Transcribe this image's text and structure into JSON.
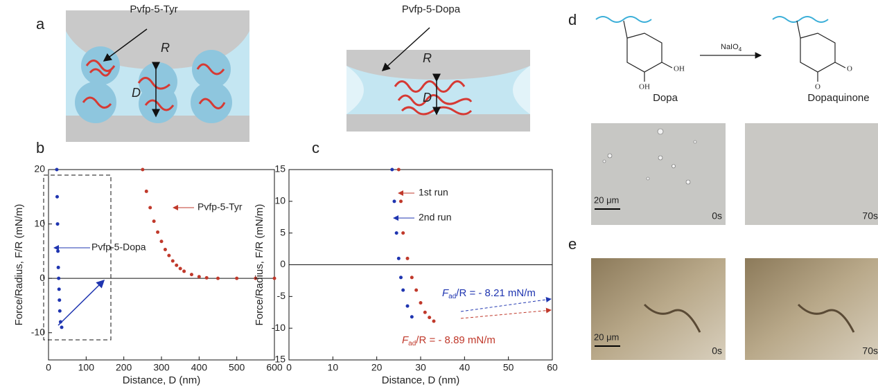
{
  "panel_labels": [
    "a",
    "b",
    "c",
    "d",
    "e"
  ],
  "schematic": {
    "left": {
      "label": "Pvfp-5-Tyr",
      "radius": "R",
      "distance": "D"
    },
    "right": {
      "label": "Pvfp-5-Dopa",
      "radius": "R",
      "distance": "D"
    }
  },
  "reaction": {
    "reactant": "Dopa",
    "reactant_groups": [
      "OH",
      "OH"
    ],
    "reagent": "NaIO",
    "reagent_subscript": "4",
    "product": "Dopaquinone",
    "product_groups": [
      "O",
      "O"
    ]
  },
  "micrographs_d": {
    "scale_bar": "20 μm",
    "times": [
      "0s",
      "70s"
    ]
  },
  "micrographs_e": {
    "scale_bar": "20 μm",
    "times": [
      "0s",
      "70s"
    ]
  },
  "chart_data": [
    {
      "type": "scatter",
      "xlabel": "Distance, D (nm)",
      "ylabel": "Force/Radius, F/R (mN/m)",
      "xlim": [
        0,
        600
      ],
      "xticks": [
        0,
        100,
        200,
        300,
        400,
        500,
        600
      ],
      "ylim": [
        -15,
        20
      ],
      "yticks": [
        -10,
        0,
        10,
        20
      ],
      "zero_line": true,
      "annotations": [
        "Pvfp-5-Tyr",
        "Pvfp-5-Dopa"
      ],
      "series": [
        {
          "name": "Pvfp-5-Dopa",
          "color": "#1f35b0",
          "x": [
            22,
            23,
            24,
            25,
            26,
            27,
            28,
            29,
            30,
            32,
            35
          ],
          "values": [
            20,
            15,
            10,
            5,
            2,
            0,
            -2,
            -4,
            -6,
            -8,
            -9
          ]
        },
        {
          "name": "Pvfp-5-Tyr",
          "color": "#c0392b",
          "x": [
            250,
            260,
            270,
            280,
            290,
            300,
            310,
            320,
            330,
            340,
            350,
            360,
            380,
            400,
            420,
            450,
            500,
            550,
            600
          ],
          "values": [
            20,
            16,
            13,
            10.5,
            8.5,
            6.8,
            5.3,
            4.2,
            3.2,
            2.4,
            1.8,
            1.3,
            0.7,
            0.3,
            0.1,
            0,
            0,
            0,
            0
          ]
        }
      ]
    },
    {
      "type": "scatter",
      "xlabel": "Distance, D (nm)",
      "ylabel": "Force/Radius, F/R (mN/m)",
      "xlim": [
        0,
        60
      ],
      "xticks": [
        0,
        10,
        20,
        30,
        40,
        50,
        60
      ],
      "ylim": [
        -15,
        15
      ],
      "yticks": [
        -15,
        -10,
        -5,
        0,
        5,
        10,
        15
      ],
      "zero_line": true,
      "annotations": [
        "1st run",
        "2nd run"
      ],
      "adhesion_labels": [
        [
          "F",
          "ad",
          "/R = - 8.21 mN/m"
        ],
        [
          "F",
          "ad",
          "/R = - 8.89 mN/m"
        ]
      ],
      "series": [
        {
          "name": "1st run",
          "color": "#c0392b",
          "x": [
            25,
            25.5,
            26,
            27,
            28,
            29,
            30,
            31,
            32,
            33
          ],
          "values": [
            15,
            10,
            5,
            1,
            -2,
            -4,
            -6,
            -7.5,
            -8.3,
            -8.89
          ]
        },
        {
          "name": "2nd run",
          "color": "#1f35b0",
          "x": [
            23.5,
            24,
            24.5,
            25,
            25.5,
            26,
            27,
            28
          ],
          "values": [
            15,
            10,
            5,
            1,
            -2,
            -4,
            -6.5,
            -8.21
          ]
        }
      ]
    }
  ]
}
